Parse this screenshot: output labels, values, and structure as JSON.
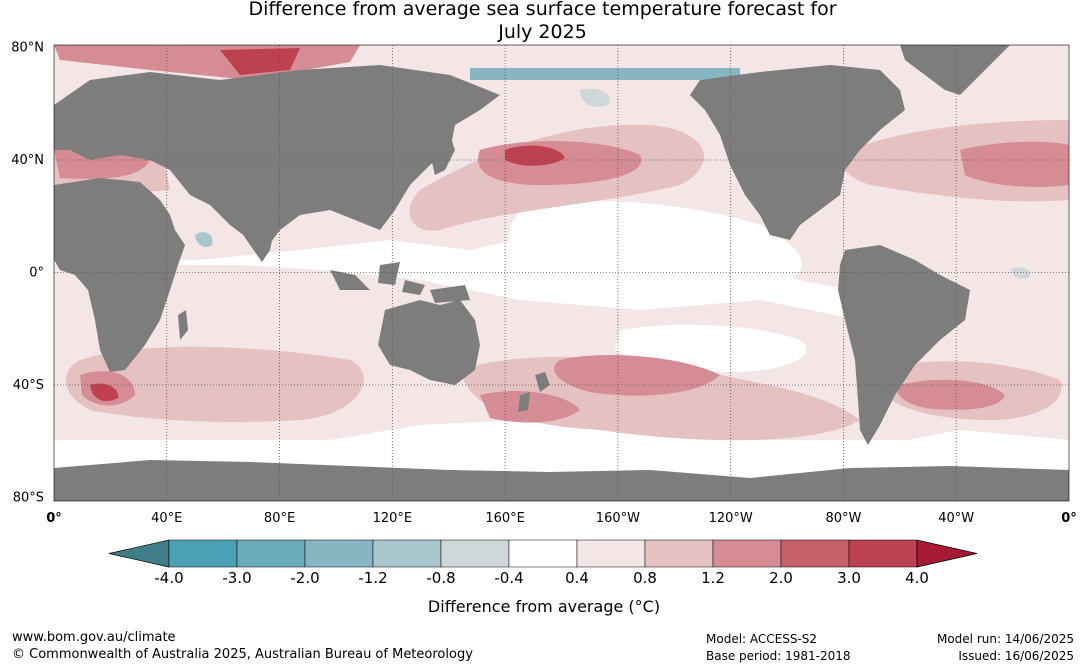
{
  "title": {
    "line1": "Difference from average sea surface temperature forecast for",
    "line2": "July 2025"
  },
  "map": {
    "lat_labels": [
      "80°N",
      "40°N",
      "0°",
      "40°S",
      "80°S"
    ],
    "lon_labels": [
      "0°",
      "40°E",
      "80°E",
      "120°E",
      "160°E",
      "160°W",
      "120°W",
      "80°W",
      "40°W",
      "0°"
    ],
    "land_color": "#7d7d7d",
    "ocean_color": "#ffffff"
  },
  "colorbar": {
    "tick_labels": [
      "-4.0",
      "-3.0",
      "-2.0",
      "-1.2",
      "-0.8",
      "-0.4",
      "0.4",
      "0.8",
      "1.2",
      "2.0",
      "3.0",
      "4.0"
    ],
    "colors": [
      "#3f7e88",
      "#4aa2b4",
      "#6aacbb",
      "#87b5c2",
      "#a8c6cb",
      "#cfd7d9",
      "#ffffff",
      "#f4e6e6",
      "#e6c1c1",
      "#d68c94",
      "#c8606c",
      "#bd4150",
      "#a81a33"
    ],
    "label": "Difference from average (°C)"
  },
  "footer": {
    "website": "www.bom.gov.au/climate",
    "copyright": "© Commonwealth of Australia 2025, Australian Bureau of Meteorology",
    "model": "Model: ACCESS-S2",
    "base_period": "Base period: 1981-2018",
    "model_run": "Model run: 14/06/2025",
    "issued": "Issued: 16/06/2025"
  }
}
